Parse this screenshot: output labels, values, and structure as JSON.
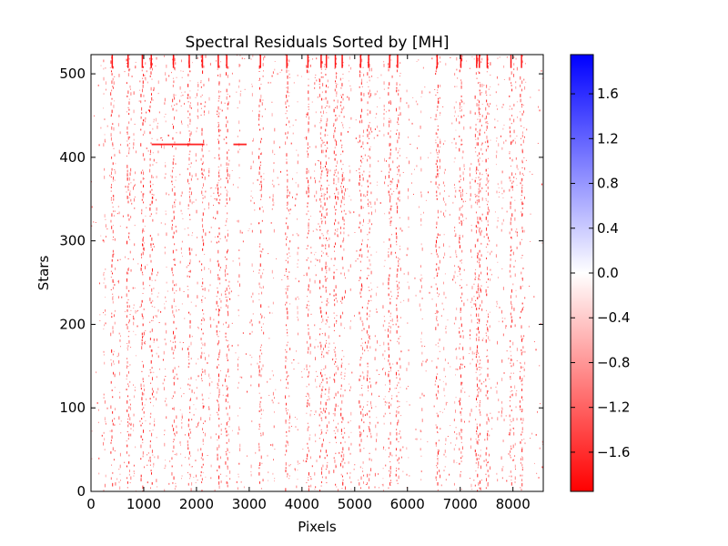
{
  "chart_data": {
    "type": "heatmap",
    "title": "Spectral Residuals Sorted by [MH]",
    "xlabel": "Pixels",
    "ylabel": "Stars",
    "xlim": [
      0,
      8575
    ],
    "ylim": [
      0,
      523
    ],
    "x_ticks": [
      0,
      1000,
      2000,
      3000,
      4000,
      5000,
      6000,
      7000,
      8000
    ],
    "y_ticks": [
      0,
      100,
      200,
      300,
      400,
      500
    ],
    "colorbar": {
      "range": [
        -1.95,
        1.95
      ],
      "ticks": [
        -1.6,
        -1.2,
        -0.8,
        -0.4,
        0.0,
        0.4,
        0.8,
        1.2,
        1.6
      ],
      "tick_labels": [
        "−1.6",
        "−1.2",
        "−0.8",
        "−0.4",
        "0.0",
        "0.4",
        "0.8",
        "1.2",
        "1.6"
      ],
      "colors": {
        "low": "#ff0000",
        "mid": "#ffffff",
        "high": "#0000ff"
      }
    },
    "grid": false,
    "residual_features": {
      "strong_columns_pixel": [
        390,
        690,
        960,
        1130,
        1550,
        1850,
        2100,
        2400,
        2560,
        3200,
        3700,
        4100,
        4350,
        4450,
        4620,
        4750,
        5100,
        5250,
        5650,
        5800,
        6550,
        7000,
        7300,
        7350,
        7500,
        7950,
        8150
      ],
      "weak_columns_pixel": [
        250,
        530,
        820,
        1250,
        1400,
        1700,
        2000,
        2250,
        2800,
        3050,
        3450,
        3900,
        4250,
        4900,
        5400,
        5550,
        6000,
        6250,
        6700,
        6900,
        7200,
        7700,
        7800,
        8050
      ],
      "horizontal_band_star": 415,
      "horizontal_band_pixels": [
        [
          1150,
          2150
        ],
        [
          2700,
          2950
        ]
      ],
      "dense_region_stars": [
        345,
        385
      ],
      "typical_residual_value": -1.5
    }
  }
}
